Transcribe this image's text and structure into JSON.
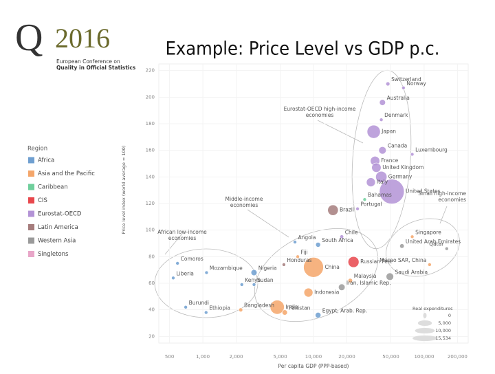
{
  "header": {
    "logo_year": "2016",
    "logo_line1": "European Conference on",
    "logo_line2": "Quality in Official Statistics",
    "title": "Example: Price Level vs GDP p.c."
  },
  "chart_data": {
    "type": "scatter",
    "xlabel": "Per capita GDP (PPP-based)",
    "ylabel": "Price level index (world average = 100)",
    "xlog": true,
    "xlim": [
      400,
      250000
    ],
    "ylim": [
      15,
      225
    ],
    "xticks": [
      500,
      {
        "value": 1000,
        "label": "1,000"
      },
      {
        "value": 2000,
        "label": "2,000"
      },
      {
        "value": 5000,
        "label": "5,000"
      },
      {
        "value": 10000,
        "label": "10,000"
      },
      {
        "value": 20000,
        "label": "20,000"
      },
      {
        "value": 50000,
        "label": "50,000"
      },
      {
        "value": 100000,
        "label": "100,000"
      },
      {
        "value": 200000,
        "label": "200,000"
      }
    ],
    "yticks": [
      20,
      40,
      60,
      80,
      100,
      120,
      140,
      160,
      180,
      200,
      220
    ],
    "legend_title": "Region",
    "series": [
      {
        "name": "Africa",
        "color": "#6f9fd0",
        "labels": [
          "Angola",
          "South Africa",
          "Comoros",
          "Liberia",
          "Mozambique",
          "Nigeria",
          "Kenya",
          "Sudan",
          "Burundi",
          "Ethiopia",
          "Egypt, Arab. Rep."
        ],
        "x": [
          6800,
          11000,
          590,
          540,
          1080,
          2900,
          2250,
          2900,
          700,
          1070,
          11000
        ],
        "values": [
          91,
          89,
          75,
          64,
          68,
          68,
          59,
          59,
          42,
          38,
          36
        ],
        "sizes": [
          150,
          600,
          5,
          5,
          50,
          900,
          120,
          130,
          10,
          250,
          800
        ]
      },
      {
        "name": "Asia and the Pacific",
        "color": "#f4a66a",
        "labels": [
          "Singapore",
          "Macao SAR, China",
          "Fiji",
          "China",
          "Malaysia",
          "Indonesia",
          "Bangladesh",
          "India",
          "Pakistan"
        ],
        "x": [
          78000,
          112000,
          7200,
          10000,
          21500,
          9000,
          2200,
          4700,
          5500
        ],
        "values": [
          95,
          74,
          80,
          72,
          62,
          53,
          40,
          42,
          38
        ],
        "sizes": [
          300,
          30,
          10,
          10000,
          500,
          2000,
          400,
          5000,
          700
        ]
      },
      {
        "name": "Caribbean",
        "color": "#6fcf9c",
        "labels": [
          "Bahamas"
        ],
        "x": [
          29000
        ],
        "values": [
          123
        ],
        "sizes": [
          10
        ]
      },
      {
        "name": "CIS",
        "color": "#e8474c",
        "labels": [
          "Russian Fed."
        ],
        "x": [
          23000
        ],
        "values": [
          76
        ],
        "sizes": [
          3000
        ]
      },
      {
        "name": "Eurostat-OECD",
        "color": "#b393d6",
        "labels": [
          "Switzerland",
          "Norway",
          "Australia",
          "Denmark",
          "Japan",
          "Canada",
          "Luxembourg",
          "France",
          "United Kingdom",
          "Germany",
          "Italy",
          "United States",
          "Portugal",
          "Chile"
        ],
        "x": [
          47000,
          65000,
          42000,
          41000,
          35000,
          42000,
          78000,
          36000,
          37000,
          41000,
          33000,
          51000,
          25000,
          18000
        ],
        "values": [
          210,
          207,
          196,
          183,
          174,
          160,
          157,
          152,
          147,
          140,
          136,
          129,
          116,
          95
        ],
        "sizes": [
          400,
          300,
          900,
          200,
          4400,
          1400,
          40,
          2200,
          2200,
          3200,
          2000,
          15534,
          250,
          350
        ]
      },
      {
        "name": "Latin America",
        "color": "#a57c7c",
        "labels": [
          "Brazil",
          "Honduras"
        ],
        "x": [
          15000,
          5400
        ],
        "values": [
          115,
          74
        ],
        "sizes": [
          2800,
          30
        ]
      },
      {
        "name": "Western Asia",
        "color": "#9a9a9a",
        "labels": [
          "United Arab Emirates",
          "Qatar",
          "Iran, Islamic Rep.",
          "Saudi Arabia"
        ],
        "x": [
          63000,
          160000,
          18000,
          49000
        ],
        "values": [
          88,
          86,
          57,
          65
        ],
        "sizes": [
          500,
          250,
          1100,
          1400
        ]
      },
      {
        "name": "Singletons",
        "color": "#e8a6c8",
        "labels": [],
        "x": [],
        "values": [],
        "sizes": []
      }
    ],
    "size_title": "Real expenditures",
    "size_ticks": [
      0,
      {
        "value": 5000,
        "label": "5,000"
      },
      {
        "value": 10000,
        "label": "10,000"
      },
      {
        "value": 15534,
        "label": "15,534"
      }
    ],
    "annotations": [
      "Eurostat-OECD high-income economies",
      "Middle-income economies",
      "African low-income economies",
      "Small high-income economies"
    ]
  }
}
